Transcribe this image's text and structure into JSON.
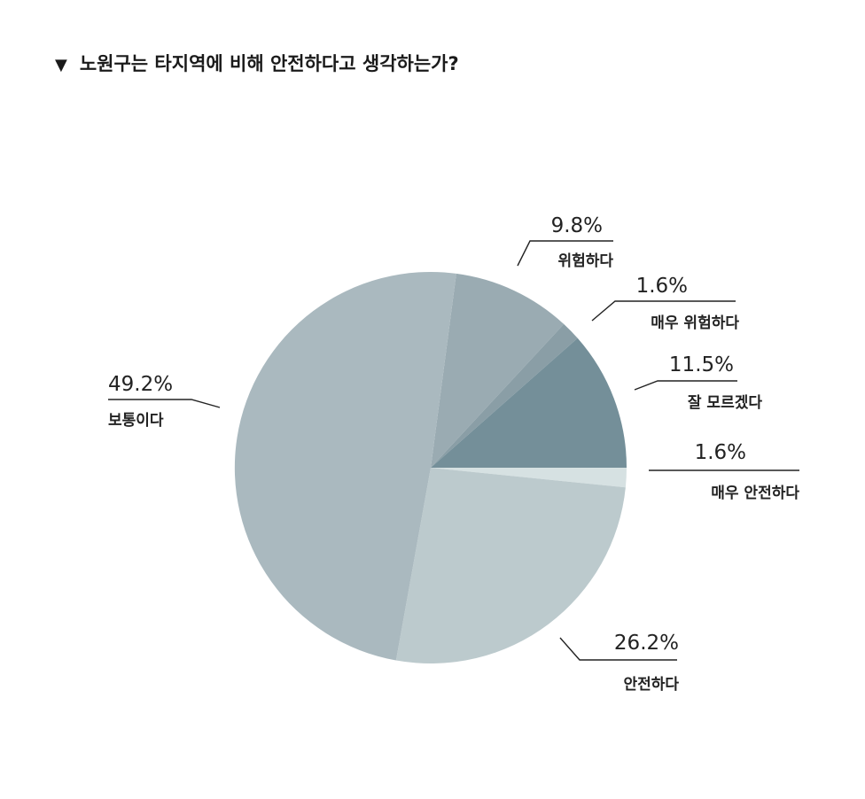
{
  "title": "노원구는 타지역에 비해 안전하다고 생각하는가?",
  "title_marker": "▼",
  "chart_data": {
    "type": "pie",
    "title": "노원구는 타지역에 비해 안전하다고 생각하는가?",
    "slices": [
      {
        "label": "위험하다",
        "value": 9.8,
        "value_label": "9.8%",
        "color": "#9aabb2"
      },
      {
        "label": "매우 위험하다",
        "value": 1.6,
        "value_label": "1.6%",
        "color": "#8a9ea6"
      },
      {
        "label": "잘 모르겠다",
        "value": 11.5,
        "value_label": "11.5%",
        "color": "#748f99"
      },
      {
        "label": "매우 안전하다",
        "value": 1.6,
        "value_label": "1.6%",
        "color": "#d6e1e2"
      },
      {
        "label": "안전하다",
        "value": 26.2,
        "value_label": "26.2%",
        "color": "#bccacd"
      },
      {
        "label": "보통이다",
        "value": 49.2,
        "value_label": "49.2%",
        "color": "#aab9bf"
      }
    ],
    "legend": "none"
  }
}
